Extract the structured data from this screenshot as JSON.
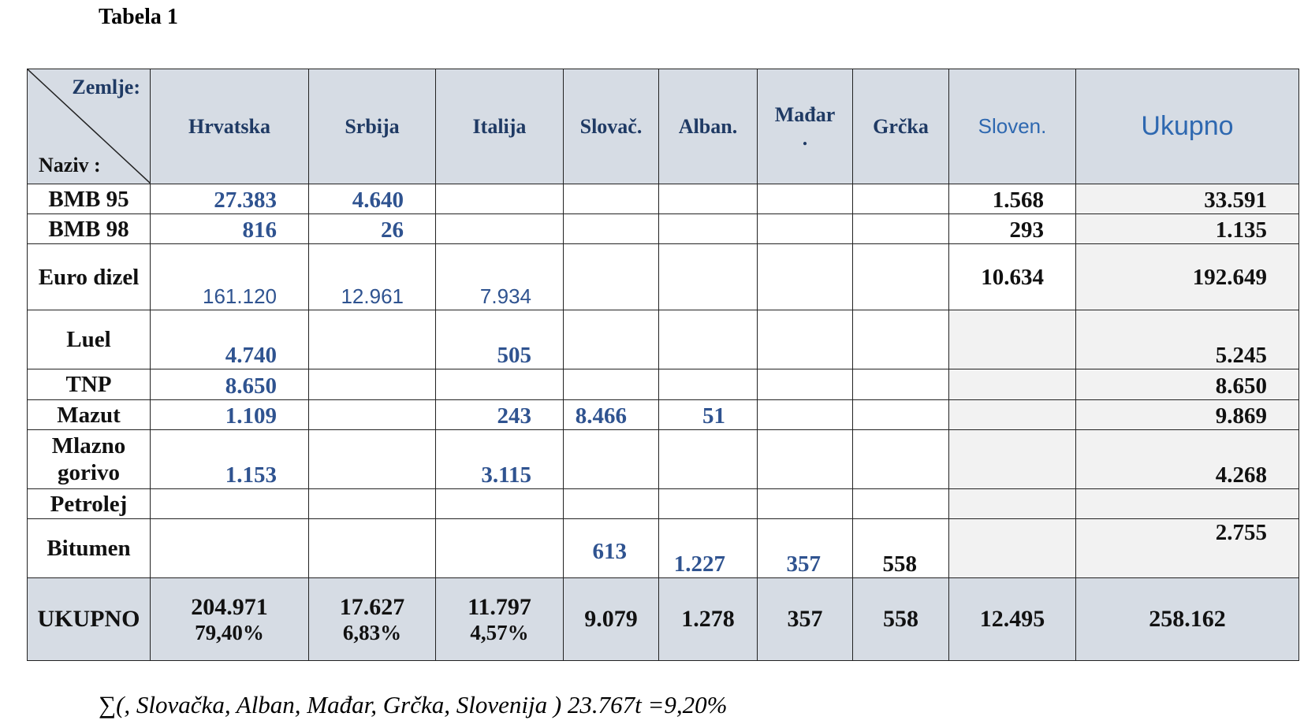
{
  "title": "Tabela 1",
  "table": {
    "corner": {
      "top": "Zemlje:",
      "bottom": "Naziv :"
    },
    "columns": [
      "Hrvatska",
      "Srbija",
      "Italija",
      "Slovač.",
      "Alban.",
      "Mađar .",
      "Grčka",
      "Sloven.",
      "Ukupno"
    ],
    "rows": [
      {
        "label": "BMB 95",
        "cells": [
          "27.383",
          "4.640",
          null,
          null,
          null,
          null,
          null,
          "1.568",
          "33.591"
        ]
      },
      {
        "label": "BMB 98",
        "cells": [
          "816",
          "26",
          null,
          null,
          null,
          null,
          null,
          "293",
          "1.135"
        ]
      },
      {
        "label": "Euro dizel",
        "cells": [
          "161.120",
          "12.961",
          "7.934",
          null,
          null,
          null,
          null,
          "10.634",
          "192.649"
        ]
      },
      {
        "label": "Luel",
        "cells": [
          "4.740",
          null,
          "505",
          null,
          null,
          null,
          null,
          null,
          "5.245"
        ]
      },
      {
        "label": "TNP",
        "cells": [
          "8.650",
          null,
          null,
          null,
          null,
          null,
          null,
          null,
          "8.650"
        ]
      },
      {
        "label": "Mazut",
        "cells": [
          "1.109",
          null,
          "243",
          "8.466",
          "51",
          null,
          null,
          null,
          "9.869"
        ]
      },
      {
        "label": "Mlazno gorivo",
        "cells": [
          "1.153",
          null,
          "3.115",
          null,
          null,
          null,
          null,
          null,
          "4.268"
        ]
      },
      {
        "label": "Petrolej",
        "cells": [
          null,
          null,
          null,
          null,
          null,
          null,
          null,
          null,
          null
        ]
      },
      {
        "label": "Bitumen",
        "cells": [
          null,
          null,
          null,
          "613",
          "1.227",
          "357",
          "558",
          null,
          "2.755"
        ]
      }
    ],
    "total": {
      "label": "UKUPNO",
      "cells": [
        [
          "204.971",
          "79,40%"
        ],
        [
          "17.627",
          "6,83%"
        ],
        [
          "11.797",
          "4,57%"
        ],
        [
          "9.079"
        ],
        [
          "1.278"
        ],
        [
          "357"
        ],
        [
          "558"
        ],
        [
          "12.495"
        ],
        [
          "258.162"
        ]
      ]
    }
  },
  "footer": "∑(, Slovačka, Alban, Mađar, Grčka, Slovenija )  23.767t =9,20%"
}
